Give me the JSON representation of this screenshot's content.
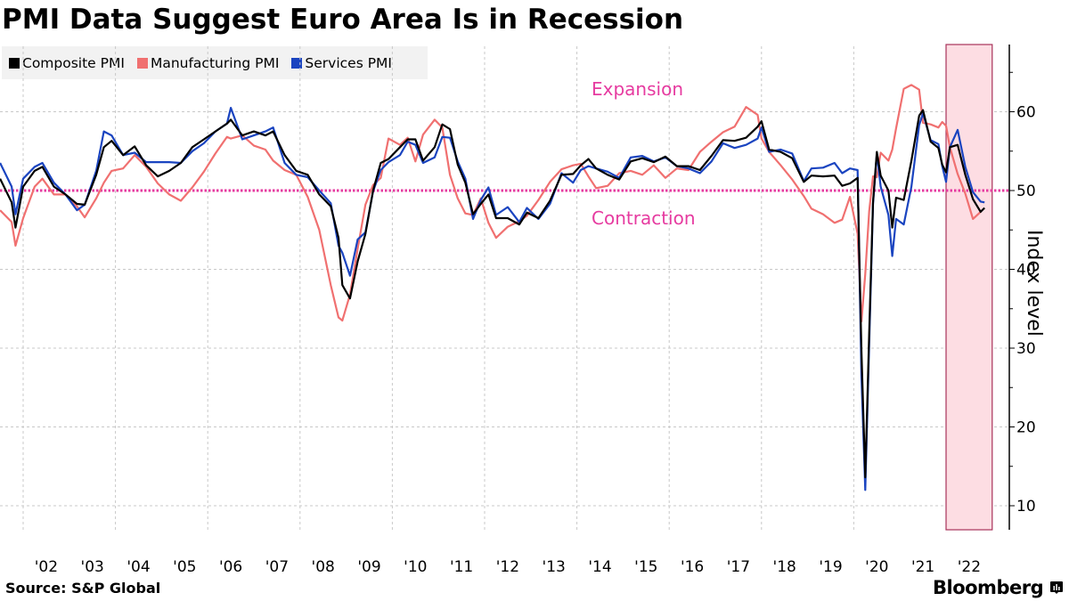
{
  "title": "PMI Data Suggest Euro Area Is in Recession",
  "source": "Source: S&P Global",
  "brand": "Bloomberg",
  "legend": [
    {
      "label": "Composite PMI",
      "color": "#000000"
    },
    {
      "label": "Manufacturing PMI",
      "color": "#f07070"
    },
    {
      "label": "Services PMI",
      "color": "#1a44c0"
    }
  ],
  "annotations": {
    "expansion": "Expansion",
    "contraction": "Contraction"
  },
  "colors": {
    "reference_line": "#e63ba0",
    "highlight_fill": "#fddde3",
    "highlight_border": "#a8325a"
  },
  "chart_data": {
    "type": "line",
    "title": "PMI Data Suggest Euro Area Is in Recession",
    "xlabel": "",
    "ylabel": "Index level",
    "y_axis_side": "right",
    "ylim": [
      7,
      68.5
    ],
    "yticks": [
      10,
      20,
      30,
      40,
      50,
      60
    ],
    "xlim": [
      "2001-07",
      "2023-02"
    ],
    "xtick_labels": [
      "'02",
      "'03",
      "'04",
      "'05",
      "'06",
      "'07",
      "'08",
      "'09",
      "'10",
      "'11",
      "'12",
      "'13",
      "'14",
      "'15",
      "'16",
      "'17",
      "'18",
      "'19",
      "'20",
      "'21",
      "'22"
    ],
    "xtick_years": [
      2002,
      2003,
      2004,
      2005,
      2006,
      2007,
      2008,
      2009,
      2010,
      2011,
      2012,
      2013,
      2014,
      2015,
      2016,
      2017,
      2018,
      2019,
      2020,
      2021,
      2022
    ],
    "grid": "dotted, vertical every 2 years, horizontal at major ticks",
    "reference_line": {
      "y": 50,
      "style": "dotted"
    },
    "highlight_region": {
      "from": "2022-01",
      "to": "2022-12"
    },
    "legend_position": "top-left",
    "annotations": [
      {
        "text": "Expansion",
        "x": "2014-01",
        "y": 62
      },
      {
        "text": "Contraction",
        "x": "2014-01",
        "y": 46.5
      }
    ],
    "dates": [
      "2001-07",
      "2001-10",
      "2001-11",
      "2002-01",
      "2002-04",
      "2002-06",
      "2002-09",
      "2002-12",
      "2003-03",
      "2003-05",
      "2003-08",
      "2003-10",
      "2003-12",
      "2004-03",
      "2004-06",
      "2004-09",
      "2004-12",
      "2005-03",
      "2005-06",
      "2005-09",
      "2005-12",
      "2006-03",
      "2006-06",
      "2006-07",
      "2006-10",
      "2007-01",
      "2007-04",
      "2007-06",
      "2007-09",
      "2007-12",
      "2008-03",
      "2008-06",
      "2008-09",
      "2008-11",
      "2008-12",
      "2009-02",
      "2009-04",
      "2009-06",
      "2009-08",
      "2009-10",
      "2009-12",
      "2010-03",
      "2010-05",
      "2010-07",
      "2010-09",
      "2010-12",
      "2011-02",
      "2011-04",
      "2011-06",
      "2011-08",
      "2011-10",
      "2011-12",
      "2012-02",
      "2012-04",
      "2012-07",
      "2012-10",
      "2012-12",
      "2013-03",
      "2013-06",
      "2013-09",
      "2013-12",
      "2014-02",
      "2014-04",
      "2014-06",
      "2014-09",
      "2014-12",
      "2015-03",
      "2015-06",
      "2015-09",
      "2015-12",
      "2016-03",
      "2016-06",
      "2016-09",
      "2016-12",
      "2017-03",
      "2017-06",
      "2017-09",
      "2017-12",
      "2018-01",
      "2018-03",
      "2018-06",
      "2018-09",
      "2018-12",
      "2019-02",
      "2019-05",
      "2019-08",
      "2019-10",
      "2019-12",
      "2020-02",
      "2020-03",
      "2020-04",
      "2020-05",
      "2020-06",
      "2020-07",
      "2020-08",
      "2020-10",
      "2020-11",
      "2020-12",
      "2021-02",
      "2021-04",
      "2021-06",
      "2021-07",
      "2021-09",
      "2021-11",
      "2021-12",
      "2022-01",
      "2022-02",
      "2022-04",
      "2022-06",
      "2022-08",
      "2022-10",
      "2022-11"
    ],
    "series": [
      {
        "name": "Manufacturing PMI",
        "color": "#f07070",
        "values": [
          47.5,
          46,
          43,
          46.5,
          50.5,
          51.5,
          49.5,
          49.5,
          48,
          46.6,
          49,
          51,
          52.5,
          52.8,
          54.5,
          53,
          50.9,
          49.5,
          48.7,
          50.4,
          52.4,
          54.7,
          56.8,
          56.6,
          57,
          55.7,
          55.2,
          53.8,
          52.6,
          52,
          49.2,
          45,
          38,
          33.9,
          33.5,
          36.8,
          42.6,
          48.2,
          50.7,
          51.6,
          56.6,
          55.8,
          56.7,
          53.7,
          57.1,
          59,
          58,
          52,
          49,
          47.1,
          46.9,
          49,
          45.9,
          44,
          45.4,
          46.1,
          46.8,
          48.8,
          51.1,
          52.7,
          53.2,
          53.4,
          51.8,
          50.3,
          50.6,
          52.2,
          52.5,
          52,
          53.2,
          51.6,
          52.8,
          52.6,
          54.9,
          56.2,
          57.4,
          58.1,
          60.6,
          59.6,
          56.6,
          54.9,
          53.2,
          51.4,
          49.3,
          47.7,
          47,
          45.9,
          46.3,
          49.2,
          44.5,
          33.4,
          39.4,
          47.4,
          51.8,
          51.7,
          54.8,
          53.8,
          55.2,
          57.9,
          62.9,
          63.4,
          62.8,
          58.6,
          58.4,
          58,
          58.7,
          58.2,
          55.5,
          52.1,
          49.6,
          46.4,
          47.3
        ]
      },
      {
        "name": "Services PMI",
        "color": "#1a44c0",
        "values": [
          53.5,
          50.5,
          47,
          51.5,
          53,
          53.5,
          51,
          49.5,
          47.5,
          48.2,
          52.5,
          57.5,
          57,
          54.5,
          54.8,
          53.6,
          53.6,
          53.6,
          53.5,
          55,
          56,
          57.5,
          58.5,
          60.5,
          56.5,
          57,
          57.5,
          58,
          53.5,
          52,
          51.7,
          50,
          48.4,
          43,
          42.1,
          39.2,
          43.8,
          44.7,
          49.9,
          52.6,
          53.6,
          54.5,
          56.2,
          55.8,
          53.5,
          54.2,
          56.8,
          56.7,
          53.7,
          51.5,
          46.4,
          48.8,
          50.4,
          46.9,
          47.9,
          46,
          47.8,
          46.4,
          48.3,
          52.2,
          51,
          52.6,
          53.1,
          52.8,
          52.4,
          51.6,
          54.2,
          54.4,
          53.7,
          54.2,
          53.1,
          52.8,
          52.2,
          53.7,
          56,
          55.4,
          55.8,
          56.6,
          58,
          54.9,
          55.2,
          54.7,
          51.2,
          52.8,
          52.9,
          53.5,
          52.2,
          52.8,
          52.6,
          26.4,
          12,
          30.5,
          48.3,
          54.7,
          50.5,
          46.9,
          41.7,
          46.4,
          45.7,
          50.5,
          58.3,
          59.8,
          56.4,
          55.9,
          53.1,
          51.1,
          55.5,
          57.7,
          53,
          49.8,
          48.6,
          48.5
        ]
      },
      {
        "name": "Composite PMI",
        "color": "#000000",
        "values": [
          51.5,
          48.5,
          45.3,
          50.5,
          52.5,
          53,
          50.5,
          49.5,
          48.3,
          48.2,
          52,
          55.5,
          56.3,
          54.5,
          55.6,
          53.2,
          51.8,
          52.5,
          53.5,
          55.5,
          56.5,
          57.5,
          58.5,
          59,
          57,
          57.5,
          57,
          57.5,
          54.5,
          52.5,
          52,
          49.5,
          48,
          44,
          38,
          36.3,
          41,
          44.5,
          50,
          53.5,
          54,
          55.5,
          56.5,
          56.5,
          53.8,
          55.5,
          58.4,
          57.8,
          53.3,
          51,
          47,
          48.3,
          49.5,
          46.5,
          46.5,
          45.7,
          47.2,
          46.5,
          48.7,
          52,
          52.1,
          53.2,
          54,
          52.8,
          52,
          51.4,
          53.7,
          54.1,
          53.6,
          54.3,
          53.1,
          53.1,
          52.6,
          54.4,
          56.4,
          56.3,
          56.7,
          58.1,
          58.8,
          55.2,
          54.9,
          54.1,
          51.1,
          51.9,
          51.8,
          51.9,
          50.6,
          50.9,
          51.6,
          29.7,
          13.6,
          31.9,
          48.5,
          54.9,
          51.9,
          50,
          45.3,
          49.1,
          48.8,
          53.8,
          59.5,
          60.2,
          56.2,
          55.4,
          53.3,
          52.3,
          55.5,
          55.8,
          52,
          48.9,
          47.3,
          47.8
        ]
      }
    ]
  }
}
